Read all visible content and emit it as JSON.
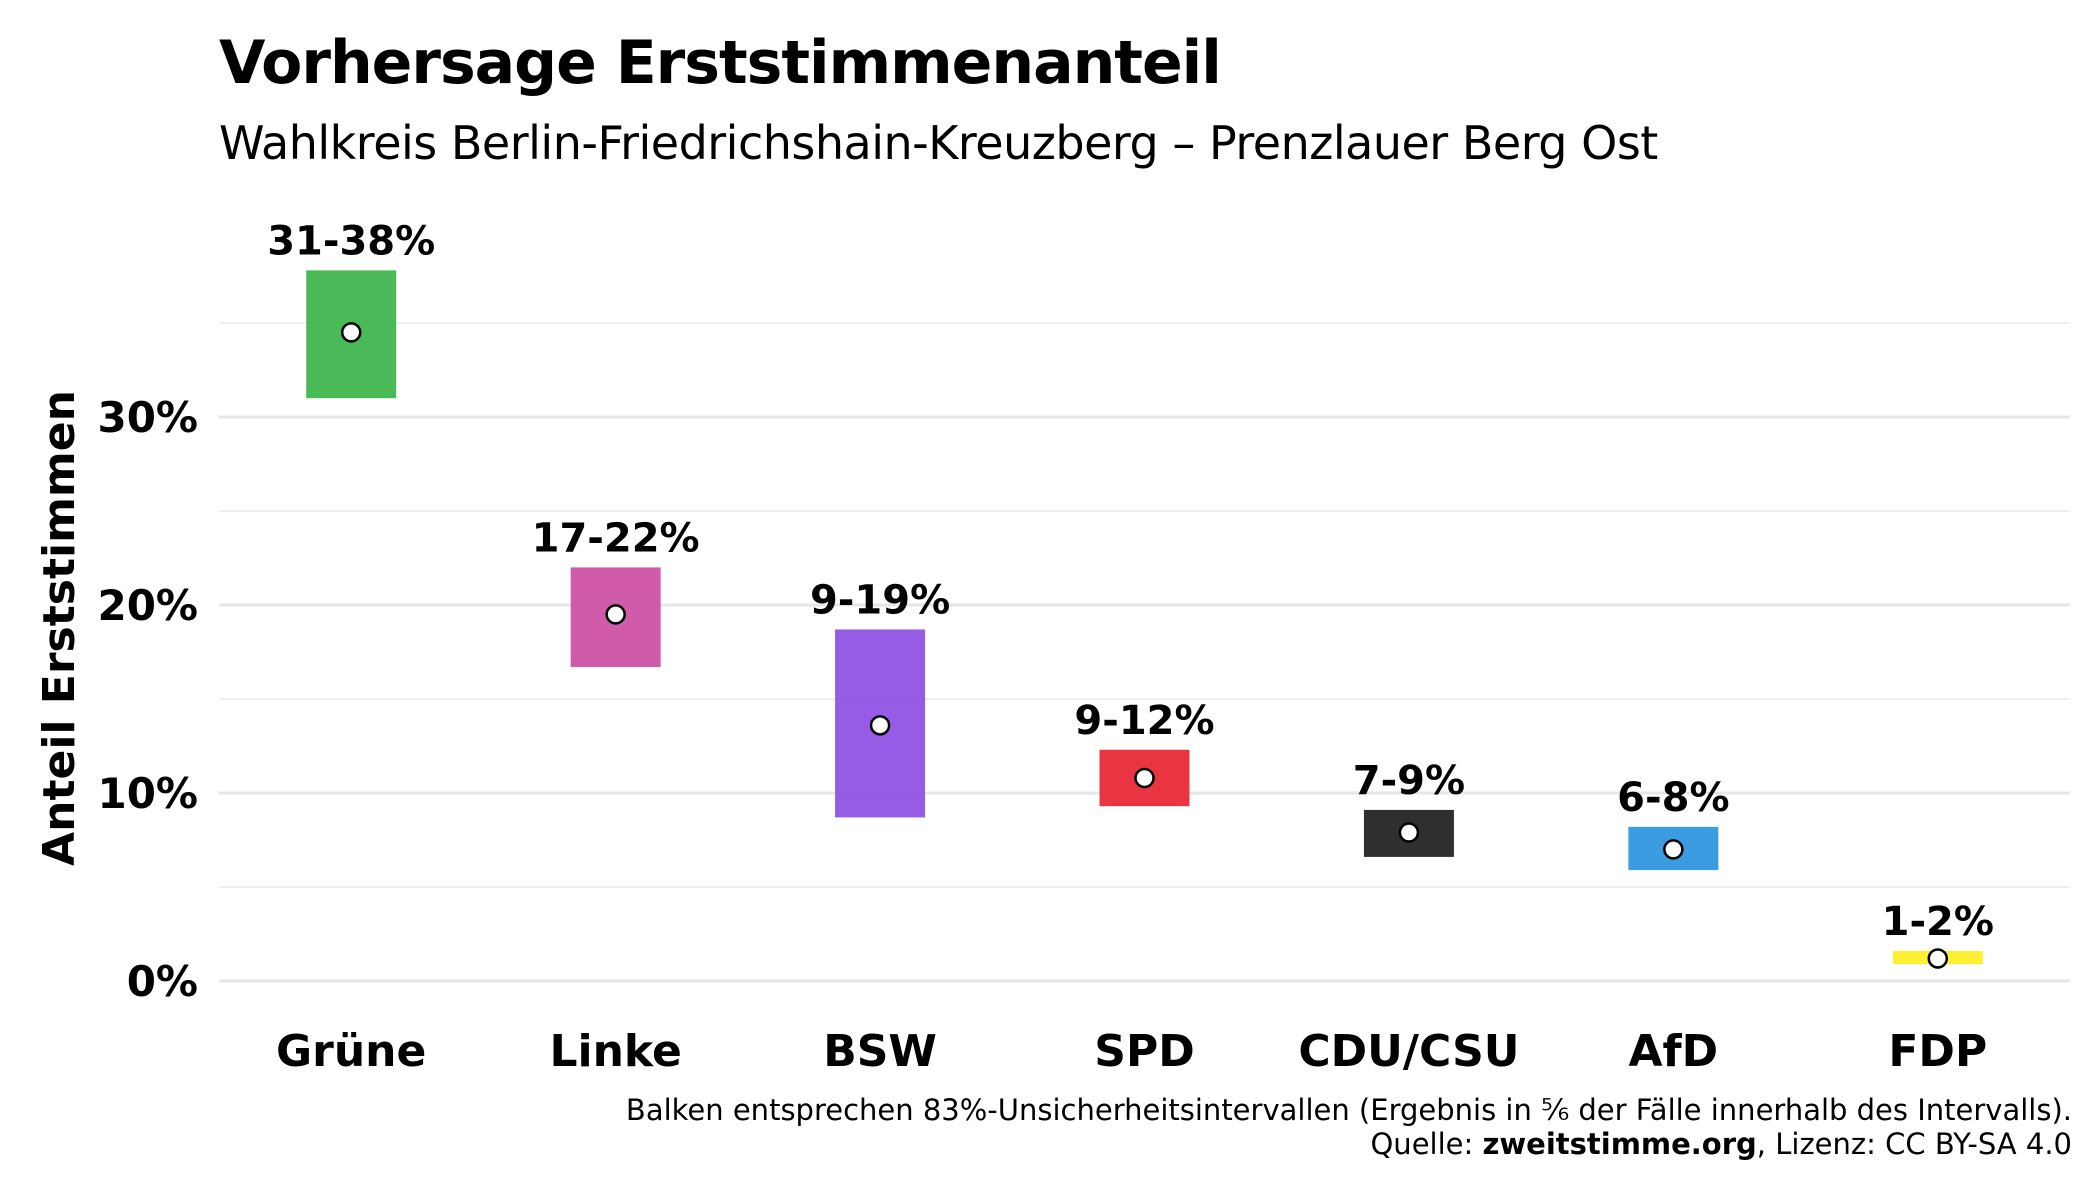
{
  "chart_data": {
    "type": "bar",
    "title": "Vorhersage Erststimmenanteil",
    "subtitle": "Wahlkreis Berlin-Friedrichshain-Kreuzberg – Prenzlauer Berg Ost",
    "xlabel": "",
    "ylabel": "Anteil Erststimmen",
    "ylim": [
      0,
      40
    ],
    "yticks": [
      0,
      10,
      20,
      30
    ],
    "ytick_labels": [
      "0%",
      "10%",
      "20%",
      "30%"
    ],
    "grid": true,
    "categories": [
      "Grüne",
      "Linke",
      "BSW",
      "SPD",
      "CDU/CSU",
      "AfD",
      "FDP"
    ],
    "series": [
      {
        "low": 31.0,
        "high": 37.8,
        "point": 34.5,
        "label": "31-38%",
        "color": "#3cb44b"
      },
      {
        "low": 16.7,
        "high": 22.0,
        "point": 19.5,
        "label": "17-22%",
        "color": "#cc4fa5"
      },
      {
        "low": 8.7,
        "high": 18.7,
        "point": 13.6,
        "label": "9-19%",
        "color": "#8e50e3"
      },
      {
        "low": 9.3,
        "high": 12.3,
        "point": 10.8,
        "label": "9-12%",
        "color": "#e72534"
      },
      {
        "low": 6.6,
        "high": 9.1,
        "point": 7.9,
        "label": "7-9%",
        "color": "#1f1f1f"
      },
      {
        "low": 5.9,
        "high": 8.2,
        "point": 7.0,
        "label": "6-8%",
        "color": "#2d95e0"
      },
      {
        "low": 0.9,
        "high": 1.6,
        "point": 1.2,
        "label": "1-2%",
        "color": "#ffee22"
      }
    ]
  },
  "caption": {
    "line1": "Balken entsprechen 83%-Unsicherheitsintervallen (Ergebnis in ⅚ der Fälle innerhalb des Intervalls).",
    "line2_prefix": "Quelle: ",
    "line2_source": "zweitstimme.org",
    "line2_suffix": ", Lizenz: CC BY-SA 4.0"
  }
}
